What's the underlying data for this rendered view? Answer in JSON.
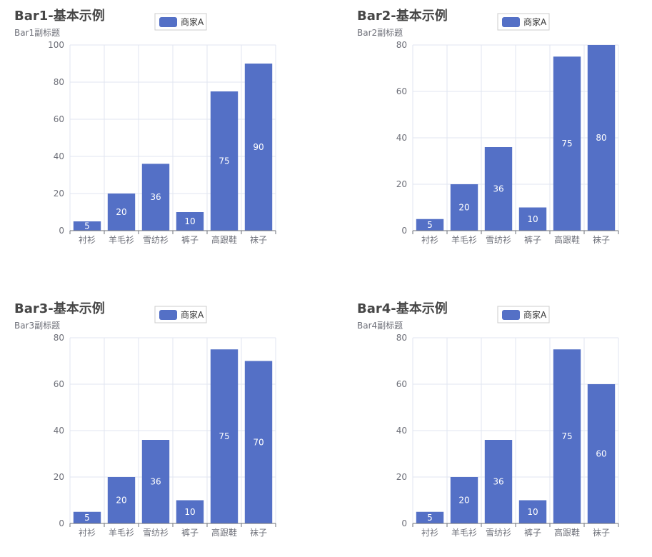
{
  "colors": {
    "bar": "#5470c6",
    "grid": "#e0e6f1",
    "axis": "#6e7079"
  },
  "chart_data": [
    {
      "type": "bar",
      "title": "Bar1-基本示例",
      "subtitle": "Bar1副标题",
      "categories": [
        "衬衫",
        "羊毛衫",
        "雪纺衫",
        "裤子",
        "高跟鞋",
        "袜子"
      ],
      "series": [
        {
          "name": "商家A",
          "values": [
            5,
            20,
            36,
            10,
            75,
            90
          ]
        }
      ],
      "ylim": [
        0,
        100
      ],
      "yticks": [
        0,
        20,
        40,
        60,
        80,
        100
      ],
      "legend": "top-center",
      "grid": true
    },
    {
      "type": "bar",
      "title": "Bar2-基本示例",
      "subtitle": "Bar2副标题",
      "categories": [
        "衬衫",
        "羊毛衫",
        "雪纺衫",
        "裤子",
        "高跟鞋",
        "袜子"
      ],
      "series": [
        {
          "name": "商家A",
          "values": [
            5,
            20,
            36,
            10,
            75,
            80
          ]
        }
      ],
      "ylim": [
        0,
        80
      ],
      "yticks": [
        0,
        20,
        40,
        60,
        80
      ],
      "legend": "top-center",
      "grid": true
    },
    {
      "type": "bar",
      "title": "Bar3-基本示例",
      "subtitle": "Bar3副标题",
      "categories": [
        "衬衫",
        "羊毛衫",
        "雪纺衫",
        "裤子",
        "高跟鞋",
        "袜子"
      ],
      "series": [
        {
          "name": "商家A",
          "values": [
            5,
            20,
            36,
            10,
            75,
            70
          ]
        }
      ],
      "ylim": [
        0,
        80
      ],
      "yticks": [
        0,
        20,
        40,
        60,
        80
      ],
      "legend": "top-center",
      "grid": true
    },
    {
      "type": "bar",
      "title": "Bar4-基本示例",
      "subtitle": "Bar4副标题",
      "categories": [
        "衬衫",
        "羊毛衫",
        "雪纺衫",
        "裤子",
        "高跟鞋",
        "袜子"
      ],
      "series": [
        {
          "name": "商家A",
          "values": [
            5,
            20,
            36,
            10,
            75,
            60
          ]
        }
      ],
      "ylim": [
        0,
        80
      ],
      "yticks": [
        0,
        20,
        40,
        60,
        80
      ],
      "legend": "top-center",
      "grid": true
    }
  ]
}
